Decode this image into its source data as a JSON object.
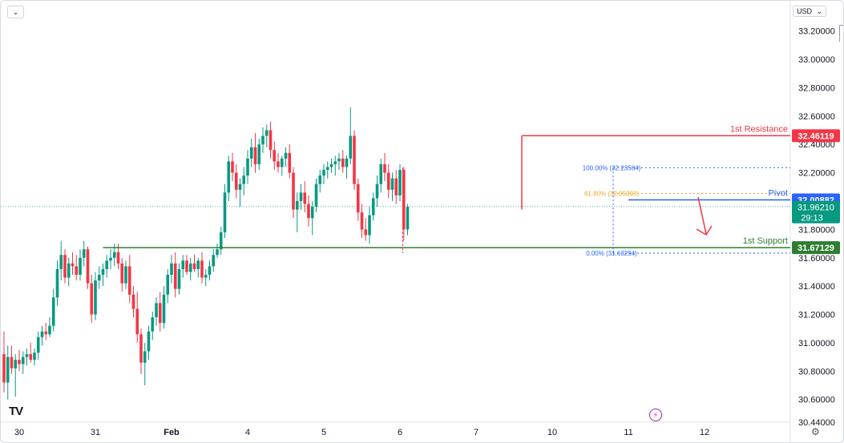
{
  "toolbar": {
    "collapse_icon": "chevron-down-icon",
    "currency_label": "USD",
    "currency_icon": "chevron-down-icon"
  },
  "logo_text": "TV",
  "colors": {
    "up": "#089981",
    "down": "#f23645",
    "resistance": "#f23645",
    "pivot": "#2962ff",
    "support": "#2e7d32",
    "fib": "#2962ff",
    "fib_mid": "#f5a623"
  },
  "chart_data": {
    "type": "candlestick",
    "ylim": [
      30.44,
      33.3
    ],
    "y_ticks": [
      "33.20000",
      "33.00000",
      "32.80000",
      "32.60000",
      "32.40000",
      "32.20000",
      "31.80000",
      "31.60000",
      "31.40000",
      "31.20000",
      "31.00000",
      "30.80000",
      "30.60000",
      "30.44000"
    ],
    "y_tick_values": [
      33.2,
      33.0,
      32.8,
      32.6,
      32.4,
      32.2,
      31.8,
      31.6,
      31.4,
      31.2,
      31.0,
      30.8,
      30.6,
      30.44
    ],
    "x_ticks": [
      {
        "label": "30",
        "bar": 4
      },
      {
        "label": "31",
        "bar": 24
      },
      {
        "label": "Feb",
        "bar": 44
      },
      {
        "label": "4",
        "bar": 64
      },
      {
        "label": "5",
        "bar": 84
      },
      {
        "label": "6",
        "bar": 104
      },
      {
        "label": "7",
        "bar": 124
      },
      {
        "label": "10",
        "bar": 144
      },
      {
        "label": "11",
        "bar": 164
      },
      {
        "label": "12",
        "bar": 184
      }
    ],
    "levels": [
      {
        "name": "1st Resistance",
        "value": 32.46119,
        "label": "32.46119",
        "start_bar": 136
      },
      {
        "name": "Pivot",
        "value": 32.00882,
        "label": "32.00882",
        "start_bar": 164
      },
      {
        "name": "1st Support",
        "value": 31.67129,
        "label": "31.67129",
        "start_bar": 26
      }
    ],
    "current_price": {
      "value": 31.9621,
      "label": "31.96210",
      "countdown": "29:13"
    },
    "fib": [
      {
        "label": "100.00% (32.23584)",
        "value": 32.23584
      },
      {
        "label": "61.80% (32.05393)",
        "value": 32.05393
      },
      {
        "label": "0.00% (31.63294)",
        "value": 31.63294
      }
    ],
    "candles": [
      [
        30.92,
        31.08,
        30.65,
        30.72
      ],
      [
        30.72,
        30.98,
        30.6,
        30.9
      ],
      [
        30.9,
        30.98,
        30.78,
        30.82
      ],
      [
        30.82,
        30.92,
        30.62,
        30.88
      ],
      [
        30.88,
        30.95,
        30.8,
        30.85
      ],
      [
        30.85,
        30.94,
        30.78,
        30.9
      ],
      [
        30.9,
        30.96,
        30.84,
        30.92
      ],
      [
        30.92,
        31.0,
        30.86,
        30.88
      ],
      [
        30.88,
        30.96,
        30.84,
        30.93
      ],
      [
        30.93,
        31.08,
        30.88,
        31.04
      ],
      [
        31.04,
        31.12,
        30.98,
        31.08
      ],
      [
        31.08,
        31.14,
        31.02,
        31.06
      ],
      [
        31.06,
        31.18,
        31.04,
        31.12
      ],
      [
        31.12,
        31.38,
        31.08,
        31.32
      ],
      [
        31.32,
        31.58,
        31.26,
        31.52
      ],
      [
        31.52,
        31.72,
        31.44,
        31.62
      ],
      [
        31.62,
        31.66,
        31.42,
        31.46
      ],
      [
        31.46,
        31.6,
        31.4,
        31.56
      ],
      [
        31.56,
        31.64,
        31.48,
        31.54
      ],
      [
        31.54,
        31.62,
        31.44,
        31.48
      ],
      [
        31.48,
        31.66,
        31.44,
        31.6
      ],
      [
        31.6,
        31.72,
        31.54,
        31.66
      ],
      [
        31.66,
        31.68,
        31.38,
        31.42
      ],
      [
        31.42,
        31.48,
        31.14,
        31.2
      ],
      [
        31.2,
        31.5,
        31.16,
        31.44
      ],
      [
        31.44,
        31.54,
        31.38,
        31.48
      ],
      [
        31.48,
        31.56,
        31.4,
        31.52
      ],
      [
        31.52,
        31.62,
        31.46,
        31.58
      ],
      [
        31.58,
        31.66,
        31.52,
        31.6
      ],
      [
        31.6,
        31.7,
        31.54,
        31.64
      ],
      [
        31.64,
        31.7,
        31.52,
        31.56
      ],
      [
        31.56,
        31.6,
        31.36,
        31.42
      ],
      [
        31.42,
        31.58,
        31.38,
        31.54
      ],
      [
        31.54,
        31.62,
        31.28,
        31.34
      ],
      [
        31.34,
        31.4,
        31.18,
        31.24
      ],
      [
        31.24,
        31.36,
        31.0,
        31.06
      ],
      [
        31.06,
        31.1,
        30.78,
        30.86
      ],
      [
        30.86,
        31.0,
        30.7,
        30.94
      ],
      [
        30.94,
        31.12,
        30.88,
        31.08
      ],
      [
        31.08,
        31.22,
        31.02,
        31.18
      ],
      [
        31.18,
        31.32,
        31.12,
        31.28
      ],
      [
        31.28,
        31.36,
        31.08,
        31.14
      ],
      [
        31.14,
        31.4,
        31.1,
        31.34
      ],
      [
        31.34,
        31.52,
        31.28,
        31.48
      ],
      [
        31.48,
        31.62,
        31.42,
        31.56
      ],
      [
        31.56,
        31.64,
        31.32,
        31.38
      ],
      [
        31.38,
        31.56,
        31.34,
        31.52
      ],
      [
        31.52,
        31.62,
        31.46,
        31.58
      ],
      [
        31.58,
        31.62,
        31.48,
        31.5
      ],
      [
        31.5,
        31.6,
        31.44,
        31.56
      ],
      [
        31.56,
        31.62,
        31.5,
        31.52
      ],
      [
        31.52,
        31.6,
        31.46,
        31.58
      ],
      [
        31.58,
        31.64,
        31.42,
        31.46
      ],
      [
        31.46,
        31.52,
        31.4,
        31.48
      ],
      [
        31.48,
        31.58,
        31.44,
        31.54
      ],
      [
        31.54,
        31.66,
        31.5,
        31.62
      ],
      [
        31.62,
        31.7,
        31.6,
        31.66
      ],
      [
        31.66,
        31.82,
        31.62,
        31.78
      ],
      [
        31.78,
        32.12,
        31.74,
        32.06
      ],
      [
        32.06,
        32.32,
        32.0,
        32.28
      ],
      [
        32.28,
        32.34,
        32.14,
        32.2
      ],
      [
        32.2,
        32.26,
        32.02,
        32.08
      ],
      [
        32.08,
        32.16,
        31.96,
        32.12
      ],
      [
        32.12,
        32.24,
        32.04,
        32.18
      ],
      [
        32.18,
        32.36,
        32.12,
        32.3
      ],
      [
        32.3,
        32.44,
        32.24,
        32.38
      ],
      [
        32.38,
        32.48,
        32.2,
        32.26
      ],
      [
        32.26,
        32.44,
        32.22,
        32.4
      ],
      [
        32.4,
        32.52,
        32.34,
        32.46
      ],
      [
        32.46,
        32.54,
        32.38,
        32.5
      ],
      [
        32.5,
        32.56,
        32.3,
        32.36
      ],
      [
        32.36,
        32.42,
        32.22,
        32.28
      ],
      [
        32.28,
        32.34,
        32.2,
        32.24
      ],
      [
        32.24,
        32.32,
        32.18,
        32.3
      ],
      [
        32.3,
        32.38,
        32.24,
        32.34
      ],
      [
        32.34,
        32.4,
        32.16,
        32.2
      ],
      [
        32.2,
        32.24,
        31.88,
        31.94
      ],
      [
        31.94,
        32.06,
        31.78,
        32.0
      ],
      [
        32.0,
        32.12,
        31.94,
        32.06
      ],
      [
        32.06,
        32.14,
        31.92,
        31.98
      ],
      [
        31.98,
        32.04,
        31.82,
        31.88
      ],
      [
        31.88,
        32.0,
        31.76,
        31.96
      ],
      [
        31.96,
        32.16,
        31.92,
        32.12
      ],
      [
        32.12,
        32.22,
        32.06,
        32.18
      ],
      [
        32.18,
        32.26,
        32.12,
        32.22
      ],
      [
        32.22,
        32.28,
        32.16,
        32.24
      ],
      [
        32.24,
        32.3,
        32.2,
        32.26
      ],
      [
        32.26,
        32.32,
        32.18,
        32.28
      ],
      [
        32.28,
        32.34,
        32.22,
        32.3
      ],
      [
        32.3,
        32.36,
        32.2,
        32.24
      ],
      [
        32.24,
        32.32,
        32.16,
        32.3
      ],
      [
        32.3,
        32.66,
        32.26,
        32.46
      ],
      [
        32.46,
        32.5,
        32.08,
        32.12
      ],
      [
        32.12,
        32.16,
        31.86,
        31.92
      ],
      [
        31.92,
        31.98,
        31.74,
        31.8
      ],
      [
        31.8,
        31.88,
        31.72,
        31.76
      ],
      [
        31.76,
        31.96,
        31.7,
        31.9
      ],
      [
        31.9,
        32.06,
        31.86,
        32.02
      ],
      [
        32.02,
        32.18,
        31.96,
        32.12
      ],
      [
        32.12,
        32.3,
        32.06,
        32.26
      ],
      [
        32.26,
        32.34,
        32.14,
        32.2
      ],
      [
        32.2,
        32.26,
        32.02,
        32.08
      ],
      [
        32.08,
        32.2,
        32.0,
        32.16
      ],
      [
        32.16,
        32.22,
        31.98,
        32.04
      ],
      [
        32.04,
        32.26,
        32.0,
        32.22
      ],
      [
        32.22,
        32.24,
        31.72,
        31.8
      ],
      [
        31.8,
        31.98,
        31.76,
        31.96
      ]
    ]
  }
}
